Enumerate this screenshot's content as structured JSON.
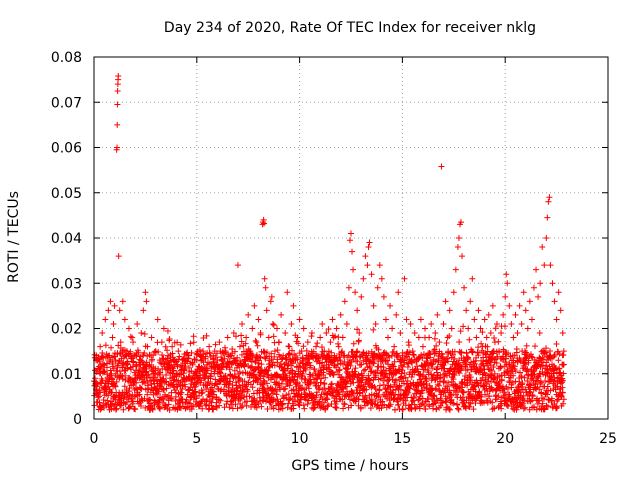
{
  "chart_data": {
    "type": "scatter",
    "title": "Day 234 of 2020, Rate Of TEC Index for receiver nklg",
    "xlabel": "GPS time / hours",
    "ylabel": "ROTI / TECUs",
    "xlim": [
      0,
      25
    ],
    "ylim": [
      0,
      0.08
    ],
    "xticks": [
      0,
      5,
      10,
      15,
      20,
      25
    ],
    "xtick_labels": [
      "0",
      "5",
      "10",
      "15",
      "20",
      "25"
    ],
    "yticks": [
      0,
      0.01,
      0.02,
      0.03,
      0.04,
      0.05,
      0.06,
      0.07,
      0.08
    ],
    "ytick_labels": [
      "0",
      "0.01",
      "0.02",
      "0.03",
      "0.04",
      "0.05",
      "0.06",
      "0.07",
      "0.08"
    ],
    "grid": true,
    "marker": "+",
    "color": "#ff0000",
    "series": [
      {
        "name": "ROTI",
        "points": [
          [
            0.05,
            0.009
          ],
          [
            0.1,
            0.013
          ],
          [
            0.15,
            0.006
          ],
          [
            0.2,
            0.011
          ],
          [
            0.3,
            0.016
          ],
          [
            0.35,
            0.008
          ],
          [
            0.4,
            0.019
          ],
          [
            0.5,
            0.012
          ],
          [
            0.55,
            0.022
          ],
          [
            0.6,
            0.007
          ],
          [
            0.7,
            0.024
          ],
          [
            0.75,
            0.014
          ],
          [
            0.8,
            0.026
          ],
          [
            0.85,
            0.01
          ],
          [
            0.9,
            0.018
          ],
          [
            0.95,
            0.021
          ],
          [
            1.0,
            0.025
          ],
          [
            1.05,
            0.013
          ],
          [
            1.1,
            0.0595
          ],
          [
            1.12,
            0.06
          ],
          [
            1.13,
            0.065
          ],
          [
            1.14,
            0.0695
          ],
          [
            1.15,
            0.0725
          ],
          [
            1.16,
            0.074
          ],
          [
            1.17,
            0.075
          ],
          [
            1.18,
            0.0758
          ],
          [
            1.2,
            0.036
          ],
          [
            1.25,
            0.024
          ],
          [
            1.3,
            0.017
          ],
          [
            1.4,
            0.026
          ],
          [
            1.5,
            0.022
          ],
          [
            1.6,
            0.015
          ],
          [
            1.7,
            0.02
          ],
          [
            1.8,
            0.011
          ],
          [
            1.9,
            0.017
          ],
          [
            2.0,
            0.014
          ],
          [
            2.1,
            0.021
          ],
          [
            2.2,
            0.009
          ],
          [
            2.3,
            0.019
          ],
          [
            2.4,
            0.024
          ],
          [
            2.5,
            0.028
          ],
          [
            2.55,
            0.026
          ],
          [
            2.6,
            0.016
          ],
          [
            2.7,
            0.012
          ],
          [
            2.8,
            0.018
          ],
          [
            2.9,
            0.01
          ],
          [
            3.0,
            0.015
          ],
          [
            3.1,
            0.022
          ],
          [
            3.2,
            0.013
          ],
          [
            3.3,
            0.017
          ],
          [
            3.4,
            0.02
          ],
          [
            3.5,
            0.011
          ],
          [
            3.6,
            0.014
          ],
          [
            3.7,
            0.009
          ],
          [
            3.8,
            0.016
          ],
          [
            3.9,
            0.012
          ],
          [
            4.0,
            0.01
          ],
          [
            4.1,
            0.015
          ],
          [
            4.2,
            0.008
          ],
          [
            4.3,
            0.013
          ],
          [
            4.4,
            0.011
          ],
          [
            4.5,
            0.009
          ],
          [
            4.6,
            0.014
          ],
          [
            4.7,
            0.007
          ],
          [
            4.8,
            0.012
          ],
          [
            4.9,
            0.01
          ],
          [
            5.0,
            0.013
          ],
          [
            5.1,
            0.008
          ],
          [
            5.2,
            0.011
          ],
          [
            5.3,
            0.015
          ],
          [
            5.4,
            0.009
          ],
          [
            5.5,
            0.012
          ],
          [
            5.6,
            0.016
          ],
          [
            5.7,
            0.01
          ],
          [
            5.8,
            0.014
          ],
          [
            5.9,
            0.011
          ],
          [
            6.0,
            0.013
          ],
          [
            6.1,
            0.017
          ],
          [
            6.2,
            0.009
          ],
          [
            6.3,
            0.012
          ],
          [
            6.4,
            0.015
          ],
          [
            6.5,
            0.018
          ],
          [
            6.6,
            0.011
          ],
          [
            6.7,
            0.014
          ],
          [
            6.8,
            0.019
          ],
          [
            6.9,
            0.013
          ],
          [
            7.0,
            0.034
          ],
          [
            7.1,
            0.016
          ],
          [
            7.2,
            0.021
          ],
          [
            7.3,
            0.012
          ],
          [
            7.4,
            0.018
          ],
          [
            7.5,
            0.023
          ],
          [
            7.6,
            0.015
          ],
          [
            7.7,
            0.02
          ],
          [
            7.8,
            0.025
          ],
          [
            7.9,
            0.017
          ],
          [
            8.0,
            0.022
          ],
          [
            8.1,
            0.019
          ],
          [
            8.2,
            0.043
          ],
          [
            8.22,
            0.0435
          ],
          [
            8.25,
            0.044
          ],
          [
            8.27,
            0.0432
          ],
          [
            8.3,
            0.031
          ],
          [
            8.35,
            0.029
          ],
          [
            8.4,
            0.024
          ],
          [
            8.5,
            0.018
          ],
          [
            8.6,
            0.026
          ],
          [
            8.65,
            0.027
          ],
          [
            8.7,
            0.021
          ],
          [
            8.8,
            0.015
          ],
          [
            8.9,
            0.02
          ],
          [
            9.0,
            0.017
          ],
          [
            9.1,
            0.023
          ],
          [
            9.2,
            0.014
          ],
          [
            9.3,
            0.019
          ],
          [
            9.4,
            0.028
          ],
          [
            9.5,
            0.016
          ],
          [
            9.6,
            0.021
          ],
          [
            9.7,
            0.025
          ],
          [
            9.8,
            0.013
          ],
          [
            9.9,
            0.018
          ],
          [
            10.0,
            0.022
          ],
          [
            10.1,
            0.015
          ],
          [
            10.2,
            0.02
          ],
          [
            10.3,
            0.012
          ],
          [
            10.4,
            0.017
          ],
          [
            10.5,
            0.014
          ],
          [
            10.6,
            0.019
          ],
          [
            10.7,
            0.011
          ],
          [
            10.8,
            0.016
          ],
          [
            10.9,
            0.013
          ],
          [
            11.0,
            0.018
          ],
          [
            11.1,
            0.021
          ],
          [
            11.2,
            0.015
          ],
          [
            11.3,
            0.019
          ],
          [
            11.4,
            0.012
          ],
          [
            11.5,
            0.017
          ],
          [
            11.6,
            0.022
          ],
          [
            11.7,
            0.014
          ],
          [
            11.8,
            0.02
          ],
          [
            11.9,
            0.016
          ],
          [
            12.0,
            0.023
          ],
          [
            12.1,
            0.018
          ],
          [
            12.2,
            0.026
          ],
          [
            12.3,
            0.021
          ],
          [
            12.4,
            0.029
          ],
          [
            12.45,
            0.0395
          ],
          [
            12.5,
            0.041
          ],
          [
            12.55,
            0.037
          ],
          [
            12.6,
            0.033
          ],
          [
            12.7,
            0.028
          ],
          [
            12.8,
            0.024
          ],
          [
            12.9,
            0.019
          ],
          [
            13.0,
            0.027
          ],
          [
            13.1,
            0.031
          ],
          [
            13.2,
            0.036
          ],
          [
            13.3,
            0.034
          ],
          [
            13.35,
            0.038
          ],
          [
            13.4,
            0.039
          ],
          [
            13.5,
            0.032
          ],
          [
            13.6,
            0.025
          ],
          [
            13.7,
            0.021
          ],
          [
            13.8,
            0.029
          ],
          [
            13.9,
            0.034
          ],
          [
            14.0,
            0.031
          ],
          [
            14.1,
            0.027
          ],
          [
            14.2,
            0.022
          ],
          [
            14.3,
            0.018
          ],
          [
            14.4,
            0.025
          ],
          [
            14.5,
            0.02
          ],
          [
            14.6,
            0.016
          ],
          [
            14.7,
            0.023
          ],
          [
            14.8,
            0.028
          ],
          [
            14.9,
            0.019
          ],
          [
            15.0,
            0.014
          ],
          [
            15.1,
            0.031
          ],
          [
            15.2,
            0.022
          ],
          [
            15.3,
            0.017
          ],
          [
            15.4,
            0.021
          ],
          [
            15.5,
            0.015
          ],
          [
            15.6,
            0.019
          ],
          [
            15.7,
            0.013
          ],
          [
            15.8,
            0.018
          ],
          [
            15.9,
            0.022
          ],
          [
            16.0,
            0.016
          ],
          [
            16.1,
            0.02
          ],
          [
            16.2,
            0.014
          ],
          [
            16.3,
            0.018
          ],
          [
            16.4,
            0.021
          ],
          [
            16.5,
            0.015
          ],
          [
            16.6,
            0.019
          ],
          [
            16.7,
            0.023
          ],
          [
            16.8,
            0.017
          ],
          [
            16.9,
            0.0558
          ],
          [
            17.0,
            0.021
          ],
          [
            17.1,
            0.026
          ],
          [
            17.2,
            0.018
          ],
          [
            17.3,
            0.024
          ],
          [
            17.4,
            0.02
          ],
          [
            17.5,
            0.028
          ],
          [
            17.6,
            0.033
          ],
          [
            17.7,
            0.038
          ],
          [
            17.75,
            0.04
          ],
          [
            17.8,
            0.043
          ],
          [
            17.85,
            0.0435
          ],
          [
            17.9,
            0.036
          ],
          [
            18.0,
            0.029
          ],
          [
            18.1,
            0.024
          ],
          [
            18.2,
            0.02
          ],
          [
            18.3,
            0.026
          ],
          [
            18.4,
            0.031
          ],
          [
            18.5,
            0.022
          ],
          [
            18.6,
            0.018
          ],
          [
            18.7,
            0.024
          ],
          [
            18.8,
            0.02
          ],
          [
            18.9,
            0.016
          ],
          [
            19.0,
            0.022
          ],
          [
            19.1,
            0.018
          ],
          [
            19.2,
            0.023
          ],
          [
            19.3,
            0.019
          ],
          [
            19.4,
            0.025
          ],
          [
            19.5,
            0.017
          ],
          [
            19.6,
            0.021
          ],
          [
            19.7,
            0.015
          ],
          [
            19.8,
            0.019
          ],
          [
            19.9,
            0.023
          ],
          [
            20.0,
            0.027
          ],
          [
            20.05,
            0.032
          ],
          [
            20.1,
            0.03
          ],
          [
            20.2,
            0.025
          ],
          [
            20.3,
            0.021
          ],
          [
            20.4,
            0.018
          ],
          [
            20.5,
            0.023
          ],
          [
            20.6,
            0.019
          ],
          [
            20.7,
            0.025
          ],
          [
            20.8,
            0.021
          ],
          [
            20.9,
            0.028
          ],
          [
            21.0,
            0.024
          ],
          [
            21.1,
            0.02
          ],
          [
            21.2,
            0.026
          ],
          [
            21.3,
            0.022
          ],
          [
            21.4,
            0.029
          ],
          [
            21.5,
            0.033
          ],
          [
            21.6,
            0.027
          ],
          [
            21.7,
            0.03
          ],
          [
            21.8,
            0.038
          ],
          [
            21.9,
            0.034
          ],
          [
            22.0,
            0.04
          ],
          [
            22.05,
            0.0445
          ],
          [
            22.1,
            0.048
          ],
          [
            22.15,
            0.049
          ],
          [
            22.2,
            0.034
          ],
          [
            22.3,
            0.03
          ],
          [
            22.4,
            0.026
          ],
          [
            22.5,
            0.022
          ],
          [
            22.6,
            0.028
          ],
          [
            22.7,
            0.024
          ],
          [
            22.8,
            0.019
          ],
          [
            22.85,
            0.015
          ]
        ]
      }
    ]
  }
}
